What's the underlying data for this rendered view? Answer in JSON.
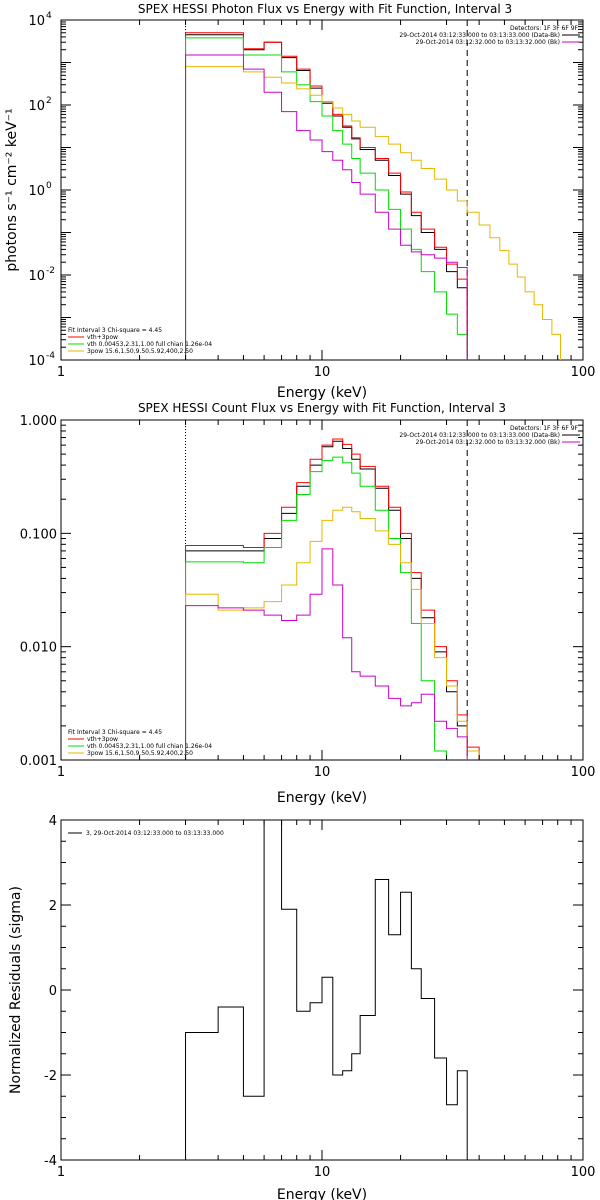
{
  "colors": {
    "data": "#000000",
    "total": "#ff0000",
    "thermal": "#00dd00",
    "powerlaw": "#e6b800",
    "background": "#cc00cc"
  },
  "chart_data": [
    {
      "type": "line",
      "title": "SPEX HESSI Photon Flux vs Energy with Fit Function, Interval 3",
      "xlabel": "Energy (keV)",
      "ylabel": "photons s⁻¹ cm⁻² keV⁻¹",
      "xscale": "log",
      "yscale": "log",
      "xlim": [
        1,
        100
      ],
      "ylim": [
        0.0001,
        10000
      ],
      "xticks": [
        {
          "v": 1,
          "label": "1"
        },
        {
          "v": 10,
          "label": "10"
        },
        {
          "v": 100,
          "label": "100"
        }
      ],
      "yticks": [
        {
          "v": 0.0001,
          "base": "10",
          "exp": "-4"
        },
        {
          "v": 0.01,
          "base": "10",
          "exp": "-2"
        },
        {
          "v": 1,
          "base": "10",
          "exp": "0"
        },
        {
          "v": 100,
          "base": "10",
          "exp": "2"
        },
        {
          "v": 10000,
          "base": "10",
          "exp": "4"
        }
      ],
      "vlines": [
        {
          "x": 3,
          "style": "dotted"
        },
        {
          "x": 36,
          "style": "dashed"
        }
      ],
      "legend_tr": {
        "header": "Detectors: 1F 3F 6F 9F",
        "entries": [
          {
            "text": "29-Oct-2014 03:12:33.000 to 03:13:33.000 (Data-Bk)",
            "color": "data"
          },
          {
            "text": "29-Oct-2014 03:12:32.000 to 03:13:32.000 (Bk)",
            "color": "background"
          }
        ]
      },
      "legend_bl": {
        "header": "Fit Interval 3   Chi-square = 4.45",
        "entries": [
          {
            "text": "vth+3pow",
            "color": "total"
          },
          {
            "text": "vth 0.00453,2.31,1.00   full chian 1.26e-04",
            "color": "thermal"
          },
          {
            "text": "3pow 15.6,1.50,9.50,5.92,400,2.50",
            "color": "powerlaw"
          }
        ]
      },
      "series": [
        {
          "color": "data",
          "edges": [
            3,
            4,
            5,
            6,
            7,
            8,
            9,
            10,
            11,
            12,
            13,
            14,
            16,
            18,
            20,
            22,
            24,
            27,
            30,
            33,
            36
          ],
          "values": [
            4500,
            4500,
            2000,
            3000,
            1300,
            650,
            250,
            110,
            55,
            30,
            16,
            9,
            5,
            2.2,
            0.8,
            0.25,
            0.1,
            0.04,
            0.012,
            0.005
          ]
        },
        {
          "color": "total",
          "edges": [
            3,
            4,
            5,
            6,
            7,
            8,
            9,
            10,
            11,
            12,
            13,
            14,
            16,
            18,
            20,
            22,
            24,
            27,
            30,
            33,
            36
          ],
          "values": [
            5000,
            5000,
            2100,
            3000,
            1400,
            700,
            280,
            120,
            60,
            32,
            17,
            10,
            5.5,
            2.5,
            0.9,
            0.3,
            0.12,
            0.045,
            0.018,
            0.008
          ]
        },
        {
          "color": "thermal",
          "edges": [
            3,
            4,
            5,
            6,
            7,
            8,
            9,
            10,
            11,
            12,
            13,
            14,
            16,
            18,
            20,
            22,
            24,
            27,
            30,
            33,
            36
          ],
          "values": [
            3800,
            3800,
            1500,
            1500,
            600,
            300,
            120,
            55,
            25,
            12,
            5.5,
            2.5,
            1,
            0.35,
            0.12,
            0.04,
            0.012,
            0.004,
            0.0012,
            0.0004
          ]
        },
        {
          "color": "powerlaw",
          "edges": [
            3,
            4,
            5,
            6,
            7,
            8,
            9,
            10,
            11,
            12,
            13,
            14,
            16,
            18,
            20,
            22,
            24,
            27,
            30,
            33,
            36,
            40,
            44,
            48,
            52,
            56,
            60,
            65,
            70,
            76,
            82
          ],
          "values": [
            800,
            800,
            600,
            450,
            330,
            240,
            170,
            120,
            85,
            60,
            42,
            30,
            18,
            12,
            7.5,
            5,
            3.2,
            1.8,
            1,
            0.55,
            0.3,
            0.15,
            0.075,
            0.038,
            0.018,
            0.009,
            0.004,
            0.002,
            0.0009,
            0.0004
          ]
        },
        {
          "color": "background",
          "edges": [
            3,
            4,
            5,
            6,
            7,
            8,
            9,
            10,
            11,
            12,
            13,
            14,
            16,
            18,
            20,
            22,
            24,
            27,
            30,
            33,
            36
          ],
          "values": [
            1500,
            1500,
            700,
            200,
            70,
            25,
            15,
            8,
            5,
            3,
            1.5,
            0.8,
            0.3,
            0.12,
            0.05,
            0.035,
            0.03,
            0.025,
            0.02,
            0.015
          ]
        }
      ]
    },
    {
      "type": "line",
      "title": "SPEX HESSI Count Flux vs Energy with Fit Function, Interval 3",
      "xlabel": "Energy (keV)",
      "ylabel": "",
      "xscale": "log",
      "yscale": "log",
      "xlim": [
        1,
        100
      ],
      "ylim": [
        0.001,
        1
      ],
      "xticks": [
        {
          "v": 1,
          "label": "1"
        },
        {
          "v": 10,
          "label": "10"
        },
        {
          "v": 100,
          "label": "100"
        }
      ],
      "yticks": [
        {
          "v": 0.001,
          "label": "0.001"
        },
        {
          "v": 0.01,
          "label": "0.010"
        },
        {
          "v": 0.1,
          "label": "0.100"
        },
        {
          "v": 1,
          "label": "1.000"
        }
      ],
      "vlines": [
        {
          "x": 3,
          "style": "dotted"
        },
        {
          "x": 36,
          "style": "dashed"
        }
      ],
      "legend_tr": {
        "header": "Detectors: 1F 3F 6F 9F",
        "entries": [
          {
            "text": "29-Oct-2014 03:12:33.000 to 03:13:33.000 (Data-Bk)",
            "color": "data"
          },
          {
            "text": "29-Oct-2014 03:12:32.000 to 03:13:32.000 (Bk)",
            "color": "background"
          }
        ]
      },
      "legend_bl": {
        "header": "Fit Interval 3   Chi-square = 4.45",
        "entries": [
          {
            "text": "vth+3pow",
            "color": "total"
          },
          {
            "text": "vth 0.00453,2.31,1.00   full chian 1.26e-04",
            "color": "thermal"
          },
          {
            "text": "3pow 15.6,1.50,9.50,5.92,400,2.50",
            "color": "powerlaw"
          }
        ]
      },
      "series": [
        {
          "color": "data",
          "edges": [
            3,
            4,
            5,
            6,
            7,
            8,
            9,
            10,
            11,
            12,
            13,
            14,
            16,
            18,
            20,
            22,
            24,
            27,
            30,
            33,
            36,
            40
          ],
          "values": [
            0.07,
            0.07,
            0.07,
            0.09,
            0.15,
            0.26,
            0.4,
            0.58,
            0.65,
            0.56,
            0.45,
            0.37,
            0.25,
            0.16,
            0.09,
            0.04,
            0.018,
            0.009,
            0.004,
            0.002,
            0.0012
          ]
        },
        {
          "color": "total",
          "edges": [
            3,
            4,
            5,
            6,
            7,
            8,
            9,
            10,
            11,
            12,
            13,
            14,
            16,
            18,
            20,
            22,
            24,
            27,
            30,
            33,
            36,
            40
          ],
          "values": [
            0.078,
            0.078,
            0.075,
            0.1,
            0.17,
            0.28,
            0.45,
            0.6,
            0.68,
            0.61,
            0.5,
            0.39,
            0.26,
            0.17,
            0.1,
            0.045,
            0.021,
            0.01,
            0.005,
            0.0025,
            0.0013
          ]
        },
        {
          "color": "thermal",
          "edges": [
            3,
            4,
            5,
            6,
            7,
            8,
            9,
            10,
            11,
            12,
            13,
            14,
            16,
            18,
            20,
            22,
            24,
            27,
            30
          ],
          "values": [
            0.056,
            0.056,
            0.055,
            0.075,
            0.13,
            0.22,
            0.35,
            0.44,
            0.47,
            0.42,
            0.34,
            0.26,
            0.16,
            0.09,
            0.045,
            0.016,
            0.005,
            0.0012
          ]
        },
        {
          "color": "powerlaw",
          "edges": [
            3,
            4,
            5,
            6,
            7,
            8,
            9,
            10,
            11,
            12,
            13,
            14,
            16,
            18,
            20,
            22,
            24,
            27,
            30,
            33,
            36,
            40
          ],
          "values": [
            0.029,
            0.021,
            0.022,
            0.025,
            0.035,
            0.055,
            0.085,
            0.13,
            0.16,
            0.17,
            0.155,
            0.135,
            0.105,
            0.08,
            0.055,
            0.032,
            0.016,
            0.008,
            0.0045,
            0.0022,
            0.0012
          ]
        },
        {
          "color": "background",
          "edges": [
            3,
            4,
            5,
            6,
            7,
            8,
            9,
            10,
            11,
            12,
            13,
            14,
            16,
            18,
            20,
            22,
            24,
            27,
            30,
            33,
            36
          ],
          "values": [
            0.023,
            0.022,
            0.021,
            0.019,
            0.017,
            0.019,
            0.029,
            0.073,
            0.035,
            0.012,
            0.006,
            0.0055,
            0.0045,
            0.0035,
            0.003,
            0.0032,
            0.0038,
            0.0022,
            0.0019,
            0.0016
          ]
        }
      ]
    },
    {
      "type": "line",
      "title": "",
      "xlabel": "Energy (keV)",
      "ylabel": "Normalized Residuals (sigma)",
      "xscale": "log",
      "yscale": "linear",
      "xlim": [
        1,
        100
      ],
      "ylim": [
        -4,
        4
      ],
      "xticks": [
        {
          "v": 1,
          "label": "1"
        },
        {
          "v": 10,
          "label": "10"
        },
        {
          "v": 100,
          "label": "100"
        }
      ],
      "yticks": [
        {
          "v": -4,
          "label": "-4"
        },
        {
          "v": -2,
          "label": "-2"
        },
        {
          "v": 0,
          "label": "0"
        },
        {
          "v": 2,
          "label": "2"
        },
        {
          "v": 4,
          "label": "4"
        }
      ],
      "legend_tl": {
        "entries": [
          {
            "text": "3, 29-Oct-2014 03:12:33.000 to 03:13:33.000",
            "color": "data"
          }
        ]
      },
      "series": [
        {
          "color": "data",
          "edges": [
            3,
            4,
            5,
            6,
            7,
            8,
            9,
            10,
            11,
            12,
            13,
            14,
            16,
            18,
            20,
            22,
            24,
            27,
            30,
            33,
            36
          ],
          "values": [
            -1.0,
            -0.4,
            -2.5,
            4.2,
            1.9,
            -0.5,
            -0.3,
            0.3,
            -2.0,
            -1.9,
            -1.5,
            -0.6,
            2.6,
            1.3,
            2.3,
            0.5,
            -0.2,
            -1.6,
            -2.7,
            -1.9
          ]
        }
      ]
    }
  ]
}
